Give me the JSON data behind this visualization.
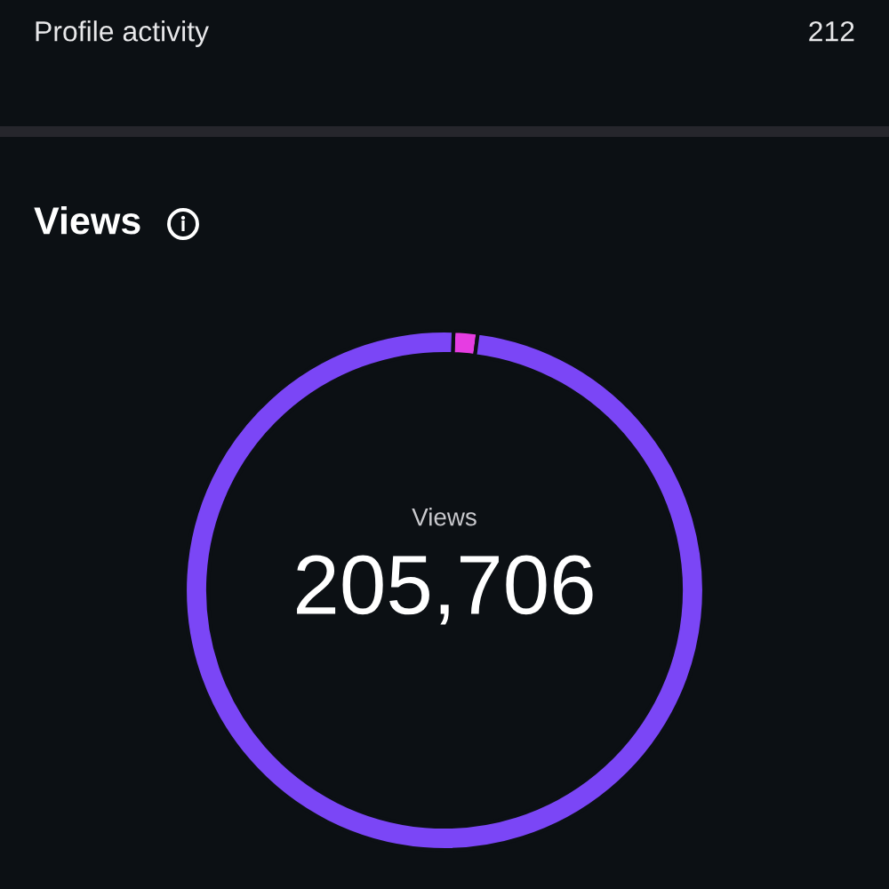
{
  "chart_data": {
    "type": "donut",
    "title": "Views",
    "categories": [
      null,
      null
    ],
    "values": [
      1.5,
      98.5
    ],
    "colors": [
      "#e63de2",
      "#7b46f6"
    ],
    "annotations": [
      "Profile activity",
      "212",
      "Views",
      "205,706"
    ]
  }
}
